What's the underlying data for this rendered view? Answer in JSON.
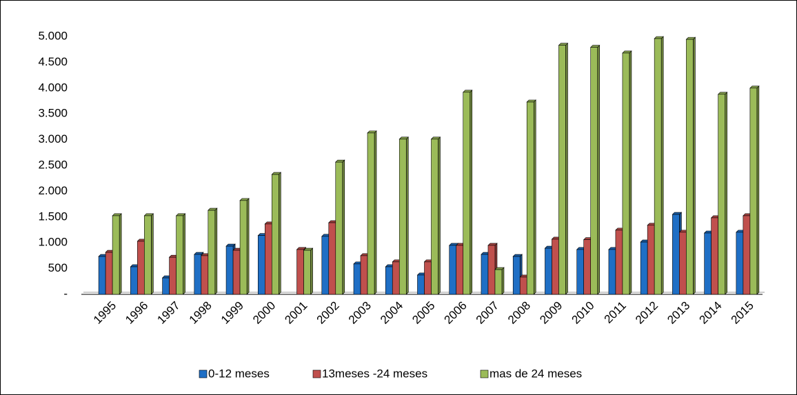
{
  "chart_data": {
    "type": "bar3d",
    "categories": [
      "1995",
      "1996",
      "1997",
      "1998",
      "1999",
      "2000",
      "2001",
      "2002",
      "2003",
      "2004",
      "2005",
      "2006",
      "2007",
      "2008",
      "2009",
      "2010",
      "2011",
      "2012",
      "2013",
      "2014",
      "2015"
    ],
    "series": [
      {
        "name": "0-12 meses",
        "color": "#1f6fc5",
        "values": [
          735,
          535,
          320,
          775,
          935,
          1140,
          0,
          1125,
          590,
          535,
          375,
          950,
          775,
          735,
          895,
          870,
          870,
          1015,
          1550,
          1190,
          1205
        ]
      },
      {
        "name": "13meses -24 meses",
        "color": "#c0504d",
        "values": [
          815,
          1030,
          720,
          750,
          855,
          1365,
          870,
          1390,
          750,
          630,
          630,
          950,
          950,
          335,
          1070,
          1060,
          1245,
          1340,
          1205,
          1485,
          1525
        ]
      },
      {
        "name": "mas de 24 meses",
        "color": "#9bbb59",
        "values": [
          1525,
          1525,
          1525,
          1630,
          1820,
          2325,
          855,
          2565,
          3130,
          3010,
          3010,
          3920,
          480,
          3730,
          4830,
          4790,
          4680,
          4960,
          4945,
          3880,
          4000
        ]
      }
    ],
    "ylim": [
      0,
      5000
    ],
    "yticks": [
      {
        "value": 0,
        "label": "-"
      },
      500,
      {
        "value": 1000,
        "label": "1.000"
      },
      {
        "value": 1500,
        "label": "1.500"
      },
      {
        "value": 2000,
        "label": "2.000"
      },
      {
        "value": 2500,
        "label": "2.500"
      },
      {
        "value": 3000,
        "label": "3.000"
      },
      {
        "value": 3500,
        "label": "3.500"
      },
      {
        "value": 4000,
        "label": "4.000"
      },
      {
        "value": 4500,
        "label": "4.500"
      },
      {
        "value": 5000,
        "label": "5.000"
      }
    ],
    "legend": "bottom"
  }
}
